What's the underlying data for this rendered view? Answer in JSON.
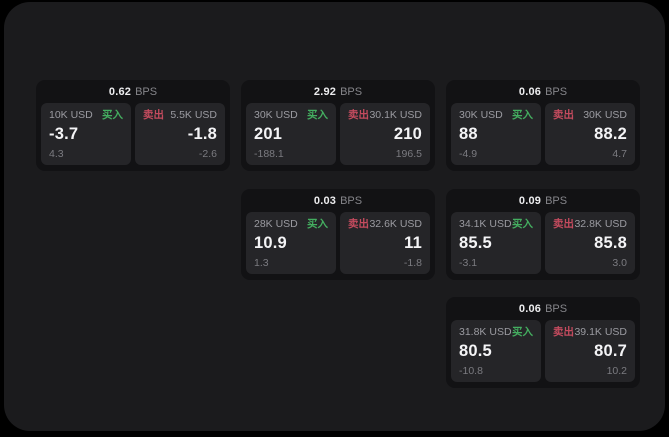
{
  "theme": {
    "page_bg": "#000000",
    "surface": "#1b1b1d",
    "card_bg": "#121214",
    "tile_bg": "#252528",
    "accent_buy": "#44ae60",
    "accent_sell": "#c44b5e"
  },
  "labels": {
    "bps_unit": "BPS",
    "buy": "买入",
    "sell": "卖出"
  },
  "cards": [
    {
      "bps": "0.62",
      "buy": {
        "amount": "10K USD",
        "price": "-3.7",
        "change": "4.3"
      },
      "sell": {
        "amount": "5.5K USD",
        "price": "-1.8",
        "change": "-2.6"
      }
    },
    {
      "bps": "2.92",
      "buy": {
        "amount": "30K USD",
        "price": "201",
        "change": "-188.1"
      },
      "sell": {
        "amount": "30.1K USD",
        "price": "210",
        "change": "196.5"
      }
    },
    {
      "bps": "0.06",
      "buy": {
        "amount": "30K USD",
        "price": "88",
        "change": "-4.9"
      },
      "sell": {
        "amount": "30K USD",
        "price": "88.2",
        "change": "4.7"
      }
    },
    {
      "bps": "0.03",
      "buy": {
        "amount": "28K USD",
        "price": "10.9",
        "change": "1.3"
      },
      "sell": {
        "amount": "32.6K USD",
        "price": "11",
        "change": "-1.8"
      }
    },
    {
      "bps": "0.09",
      "buy": {
        "amount": "34.1K USD",
        "price": "85.5",
        "change": "-3.1"
      },
      "sell": {
        "amount": "32.8K USD",
        "price": "85.8",
        "change": "3.0"
      }
    },
    {
      "bps": "0.06",
      "buy": {
        "amount": "31.8K USD",
        "price": "80.5",
        "change": "-10.8"
      },
      "sell": {
        "amount": "39.1K USD",
        "price": "80.7",
        "change": "10.2"
      }
    }
  ]
}
